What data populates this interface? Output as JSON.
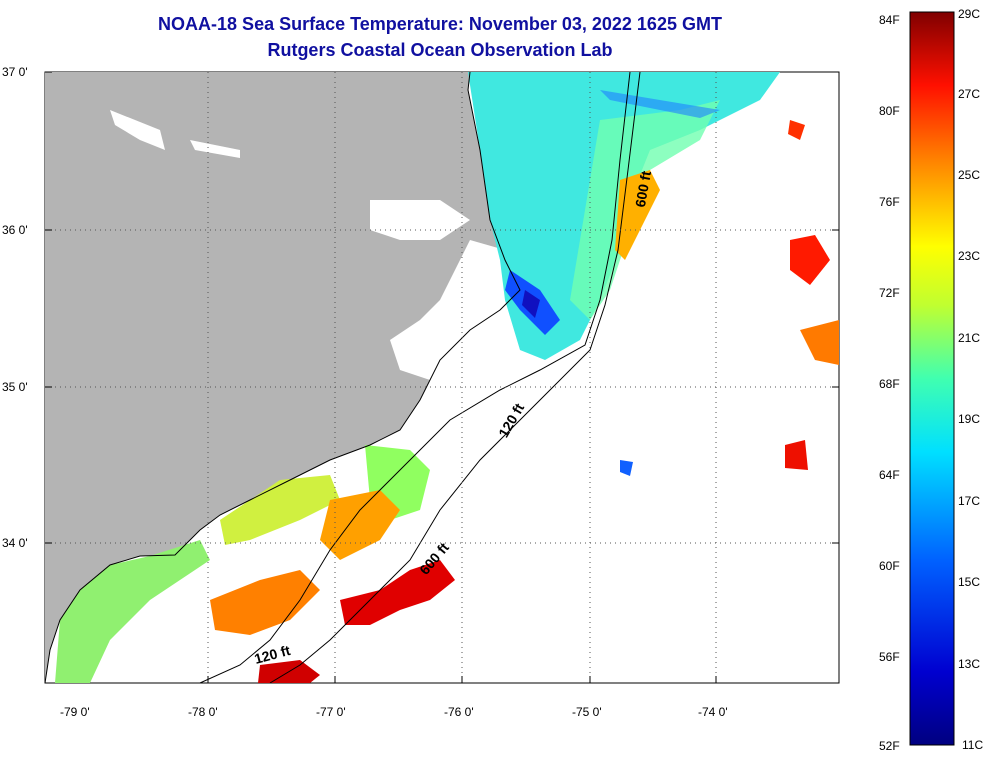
{
  "title": "NOAA-18 Sea Surface Temperature:  November 03, 2022 1625 GMT",
  "subtitle": "Rutgers Coastal Ocean Observation Lab",
  "map": {
    "lat_labels": [
      "37 0'",
      "36 0'",
      "35 0'",
      "34 0'"
    ],
    "lon_labels": [
      "-79 0'",
      "-78 0'",
      "-77 0'",
      "-76 0'",
      "-75 0'",
      "-74 0'"
    ],
    "contour_labels": [
      "600 ft",
      "120 ft",
      "600 ft",
      "120 ft"
    ]
  },
  "colorbar": {
    "fahrenheit": [
      "84F",
      "80F",
      "76F",
      "72F",
      "68F",
      "64F",
      "60F",
      "56F",
      "52F"
    ],
    "celsius": [
      "29C",
      "27C",
      "25C",
      "23C",
      "21C",
      "19C",
      "17C",
      "15C",
      "13C",
      "11C"
    ],
    "colors": [
      "#800000",
      "#c00000",
      "#ff2000",
      "#ff8000",
      "#ffd000",
      "#c0ff20",
      "#60ff80",
      "#20e0e0",
      "#00a0ff",
      "#0040ff",
      "#0000c0",
      "#000080"
    ]
  }
}
